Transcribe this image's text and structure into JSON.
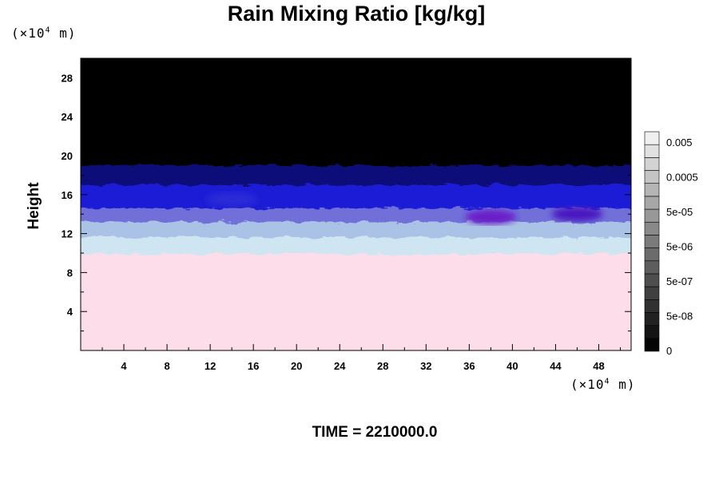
{
  "title": "Rain Mixing Ratio [kg/kg]",
  "y_unit": {
    "prefix": "(×10",
    "exp": "4",
    "suffix": " m)"
  },
  "x_unit": {
    "prefix": "(×10",
    "exp": "4",
    "suffix": " m)"
  },
  "ylabel": "Height",
  "time_label": "TIME = 2210000.0",
  "chart_data": {
    "type": "heatmap",
    "title": "Rain Mixing Ratio [kg/kg]",
    "ylabel": "Height",
    "xlabel": "",
    "x_unit": "×10^4 m",
    "y_unit": "×10^4 m",
    "xlim": [
      0,
      51
    ],
    "ylim": [
      0,
      30
    ],
    "x_ticks": [
      4,
      8,
      12,
      16,
      20,
      24,
      28,
      32,
      36,
      40,
      44,
      48
    ],
    "x_tick_labels": [
      "4",
      "8",
      "12",
      "16",
      "20",
      "24",
      "28",
      "32",
      "36",
      "40",
      "44",
      "48"
    ],
    "y_ticks": [
      4,
      8,
      12,
      16,
      20,
      24,
      28
    ],
    "y_tick_labels": [
      "4",
      "8",
      "12",
      "16",
      "20",
      "24",
      "28"
    ],
    "layers": [
      {
        "y_from": 0,
        "y_to": 9.9,
        "color": "#fddde9"
      },
      {
        "y_from": 9.9,
        "y_to": 11.6,
        "color": "#cfe6f2"
      },
      {
        "y_from": 11.6,
        "y_to": 13.2,
        "color": "#a9c2e6"
      },
      {
        "y_from": 13.2,
        "y_to": 14.6,
        "color": "#6f6fd8"
      },
      {
        "y_from": 14.6,
        "y_to": 17.0,
        "color": "#1e1ed6"
      },
      {
        "y_from": 17.0,
        "y_to": 19.0,
        "color": "#10107a"
      },
      {
        "y_from": 19.0,
        "y_to": 30,
        "color": "#000000"
      }
    ],
    "blobs": [
      {
        "x": 38,
        "y": 13.7,
        "color": "#6a1ec8"
      },
      {
        "x": 46,
        "y": 14.0,
        "color": "#4a18c0"
      },
      {
        "x": 14,
        "y": 15.5,
        "color": "#2a2ad8"
      }
    ],
    "colorbar": {
      "labels": [
        "0.005",
        "0.0005",
        "5e-05",
        "5e-06",
        "5e-07",
        "5e-08",
        "0"
      ],
      "n_levels": 17
    }
  }
}
